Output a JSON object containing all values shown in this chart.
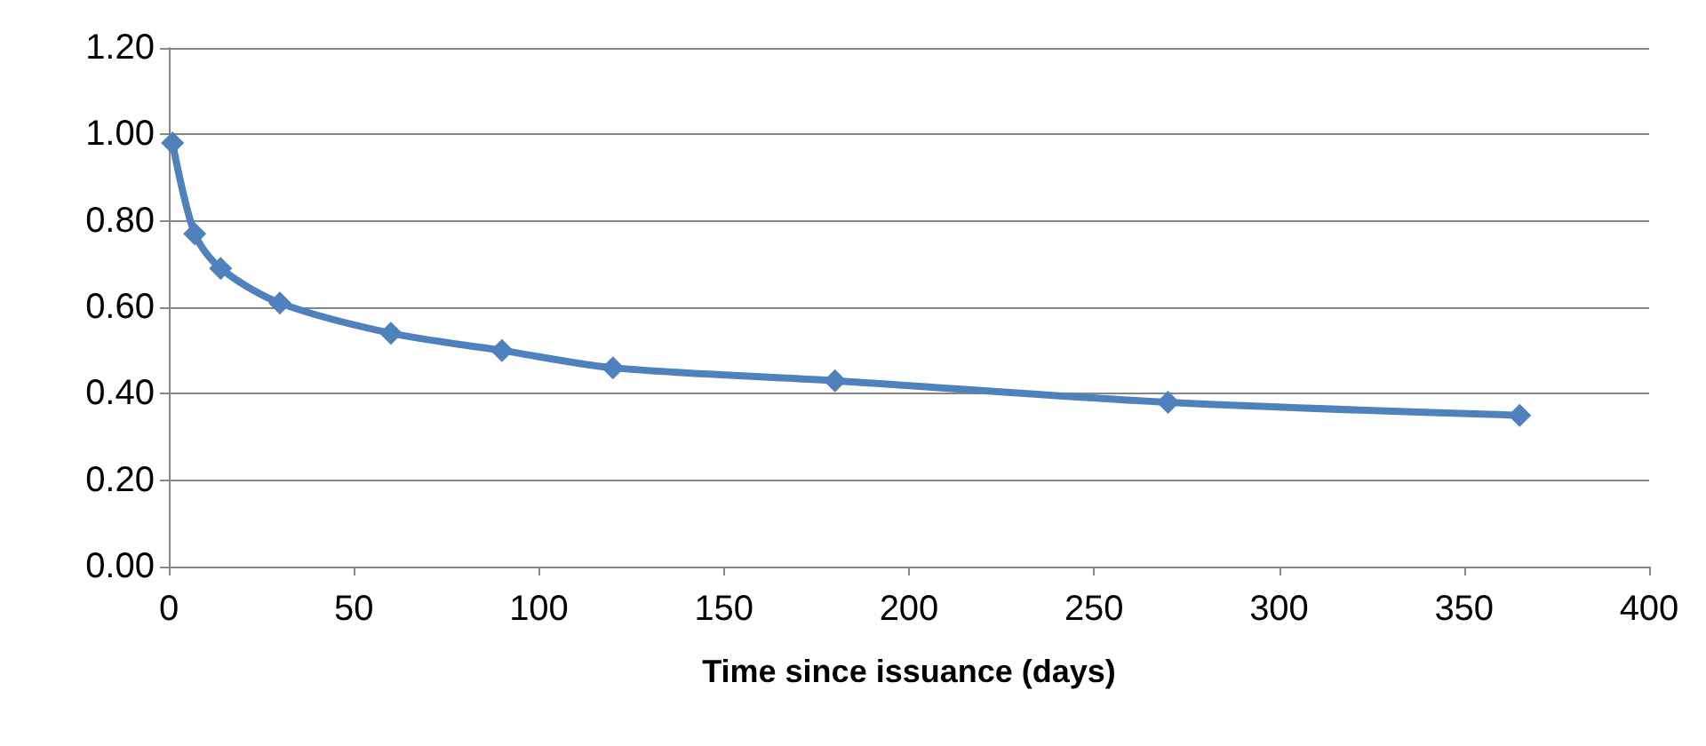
{
  "chart_data": {
    "type": "line",
    "xlabel": "Time since issuance (days)",
    "x": [
      1,
      7,
      14,
      30,
      60,
      90,
      120,
      180,
      270,
      365
    ],
    "series": [
      {
        "color": "#4f81bd",
        "values": [
          0.98,
          0.77,
          0.69,
          0.61,
          0.54,
          0.5,
          0.46,
          0.43,
          0.38,
          0.35
        ]
      }
    ],
    "xlim": [
      0,
      400
    ],
    "xticks": [
      0,
      50,
      100,
      150,
      200,
      250,
      300,
      350,
      400
    ],
    "ylim": [
      0,
      1.2
    ],
    "yticks": [
      {
        "value": 0,
        "label": "0.00"
      },
      {
        "value": 0.2,
        "label": "0.20"
      },
      {
        "value": 0.4,
        "label": "0.40"
      },
      {
        "value": 0.6,
        "label": "0.60"
      },
      {
        "value": 0.8,
        "label": "0.80"
      },
      {
        "value": 1,
        "label": "1.00"
      },
      {
        "value": 1.2,
        "label": "1.20"
      }
    ],
    "grid": "y",
    "marker": "diamond",
    "line_style": "solid"
  }
}
